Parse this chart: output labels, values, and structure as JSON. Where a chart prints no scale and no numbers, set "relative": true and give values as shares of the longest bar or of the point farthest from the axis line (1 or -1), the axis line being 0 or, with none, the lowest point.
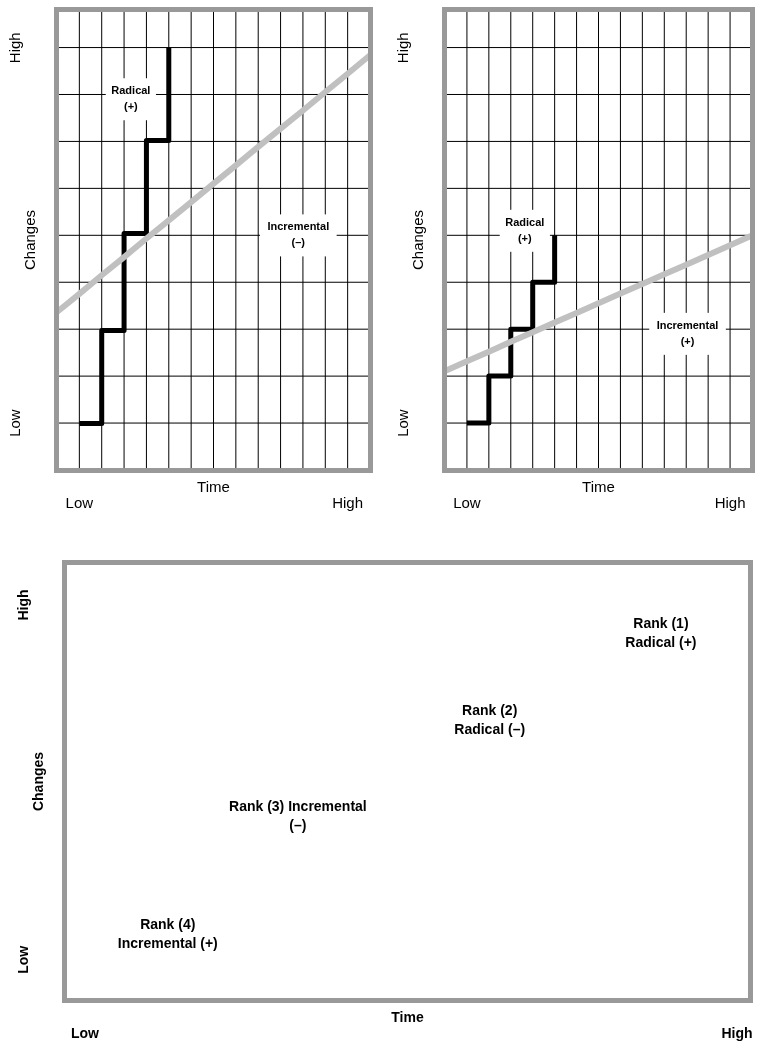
{
  "chart_data": [
    {
      "type": "line",
      "relative": true,
      "xlabel": "Time",
      "ylabel": "Changes",
      "categories": [
        null,
        "Low",
        null,
        null,
        null,
        null,
        null,
        null,
        null,
        null,
        null,
        null,
        null,
        "High",
        null
      ],
      "y_categories": [
        "High",
        "Low"
      ],
      "grid": true,
      "series": [
        {
          "type": "step",
          "color": "#000000",
          "values": [
            null,
            0.11,
            0.33,
            0.56,
            0.78,
            1,
            null,
            null,
            null,
            null,
            null,
            null,
            null,
            null,
            null
          ]
        },
        {
          "type": "line",
          "color": "#c0c0c0",
          "values": [
            0.374,
            0.417,
            0.461,
            0.504,
            0.548,
            0.591,
            0.634,
            0.678,
            0.721,
            0.765,
            0.808,
            0.851,
            0.895,
            0.938,
            0.982
          ]
        }
      ],
      "annotations": [
        "Radical\n(+)",
        "Incremental\n(–)"
      ]
    },
    {
      "type": "line",
      "relative": true,
      "xlabel": "Time",
      "ylabel": "Changes",
      "categories": [
        null,
        "Low",
        null,
        null,
        null,
        null,
        null,
        null,
        null,
        null,
        null,
        null,
        null,
        "High",
        null
      ],
      "y_categories": [
        "High",
        "Low"
      ],
      "grid": true,
      "series": [
        {
          "type": "step",
          "color": "#000000",
          "values": [
            null,
            0.2,
            0.4,
            0.6,
            0.8,
            1,
            null,
            null,
            null,
            null,
            null,
            null,
            null,
            null,
            null
          ]
        },
        {
          "type": "line",
          "color": "#c0c0c0",
          "values": [
            0.422,
            0.463,
            0.504,
            0.546,
            0.587,
            0.628,
            0.669,
            0.71,
            0.752,
            0.793,
            0.834,
            0.875,
            0.916,
            0.958,
            0.999
          ]
        }
      ],
      "annotations": [
        "Radical\n(+)",
        "Incremental\n(+)"
      ]
    },
    {
      "type": "other",
      "xlabel": "Time",
      "ylabel": "Changes",
      "categories": [
        "Low",
        "High"
      ],
      "y_categories": [
        "High",
        "Low"
      ],
      "annotations": [
        "Rank (1)\nRadical (+)",
        "Rank (2)\nRadical (–)",
        "Rank (3) Incremental\n(–)",
        "Rank (4)\nIncremental (+)"
      ]
    }
  ]
}
